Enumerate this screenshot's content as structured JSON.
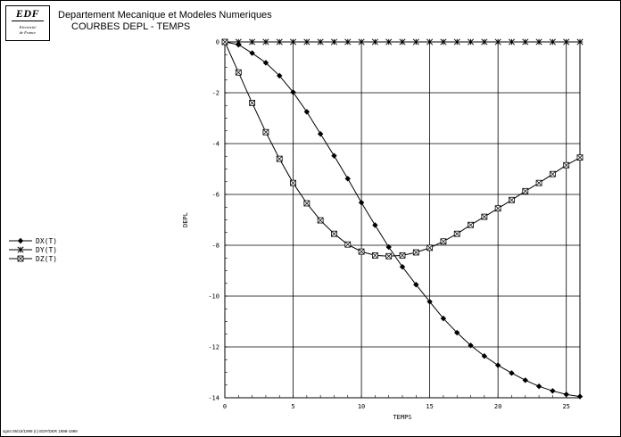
{
  "header": {
    "logo_text": "EDF",
    "logo_subtext": [
      "Electricité",
      "de France"
    ],
    "line1": "Departement Mecanique et Modeles Numeriques",
    "line2": "COURBES DEPL - TEMPS"
  },
  "footer": "sgmt 06/10/1999 (c) EDF/DER 1998-1999",
  "chart_data": {
    "type": "line",
    "title": "",
    "xlabel": "TEMPS",
    "ylabel": "DEPL",
    "xlim": [
      0,
      26
    ],
    "ylim": [
      -14,
      0
    ],
    "xticks": [
      0,
      5,
      10,
      15,
      20,
      25
    ],
    "yticks": [
      0,
      -2,
      -4,
      -6,
      -8,
      -10,
      -12,
      -14
    ],
    "grid": true,
    "legend_position": "left",
    "series": [
      {
        "name": "DX(T)",
        "marker": "diamond",
        "x": [
          0,
          1,
          2,
          3,
          4,
          5,
          6,
          7,
          8,
          9,
          10,
          11,
          12,
          13,
          14,
          15,
          16,
          17,
          18,
          19,
          20,
          21,
          22,
          23,
          24,
          25,
          26
        ],
        "y": [
          0,
          -0.11,
          -0.44,
          -0.82,
          -1.33,
          -1.98,
          -2.75,
          -3.62,
          -4.48,
          -5.38,
          -6.32,
          -7.21,
          -8.07,
          -8.85,
          -9.55,
          -10.22,
          -10.88,
          -11.44,
          -11.94,
          -12.36,
          -12.72,
          -13.03,
          -13.31,
          -13.55,
          -13.73,
          -13.87,
          -13.95
        ]
      },
      {
        "name": "DY(T)",
        "marker": "asterisk",
        "x": [
          0,
          1,
          2,
          3,
          4,
          5,
          6,
          7,
          8,
          9,
          10,
          11,
          12,
          13,
          14,
          15,
          16,
          17,
          18,
          19,
          20,
          21,
          22,
          23,
          24,
          25,
          26
        ],
        "y": [
          0,
          0,
          0,
          0,
          0,
          0,
          0,
          0,
          0,
          0,
          0,
          0,
          0,
          0,
          0,
          0,
          0,
          0,
          0,
          0,
          0,
          0,
          0,
          0,
          0,
          0,
          0
        ]
      },
      {
        "name": "DZ(T)",
        "marker": "boxed-x",
        "x": [
          0,
          1,
          2,
          3,
          4,
          5,
          6,
          7,
          8,
          9,
          10,
          11,
          12,
          13,
          14,
          15,
          16,
          17,
          18,
          19,
          20,
          21,
          22,
          23,
          24,
          25,
          26
        ],
        "y": [
          0,
          -1.2,
          -2.4,
          -3.55,
          -4.6,
          -5.55,
          -6.35,
          -7.02,
          -7.55,
          -7.97,
          -8.25,
          -8.4,
          -8.43,
          -8.4,
          -8.28,
          -8.1,
          -7.85,
          -7.55,
          -7.2,
          -6.88,
          -6.55,
          -6.22,
          -5.87,
          -5.55,
          -5.2,
          -4.85,
          -4.55
        ]
      }
    ]
  }
}
